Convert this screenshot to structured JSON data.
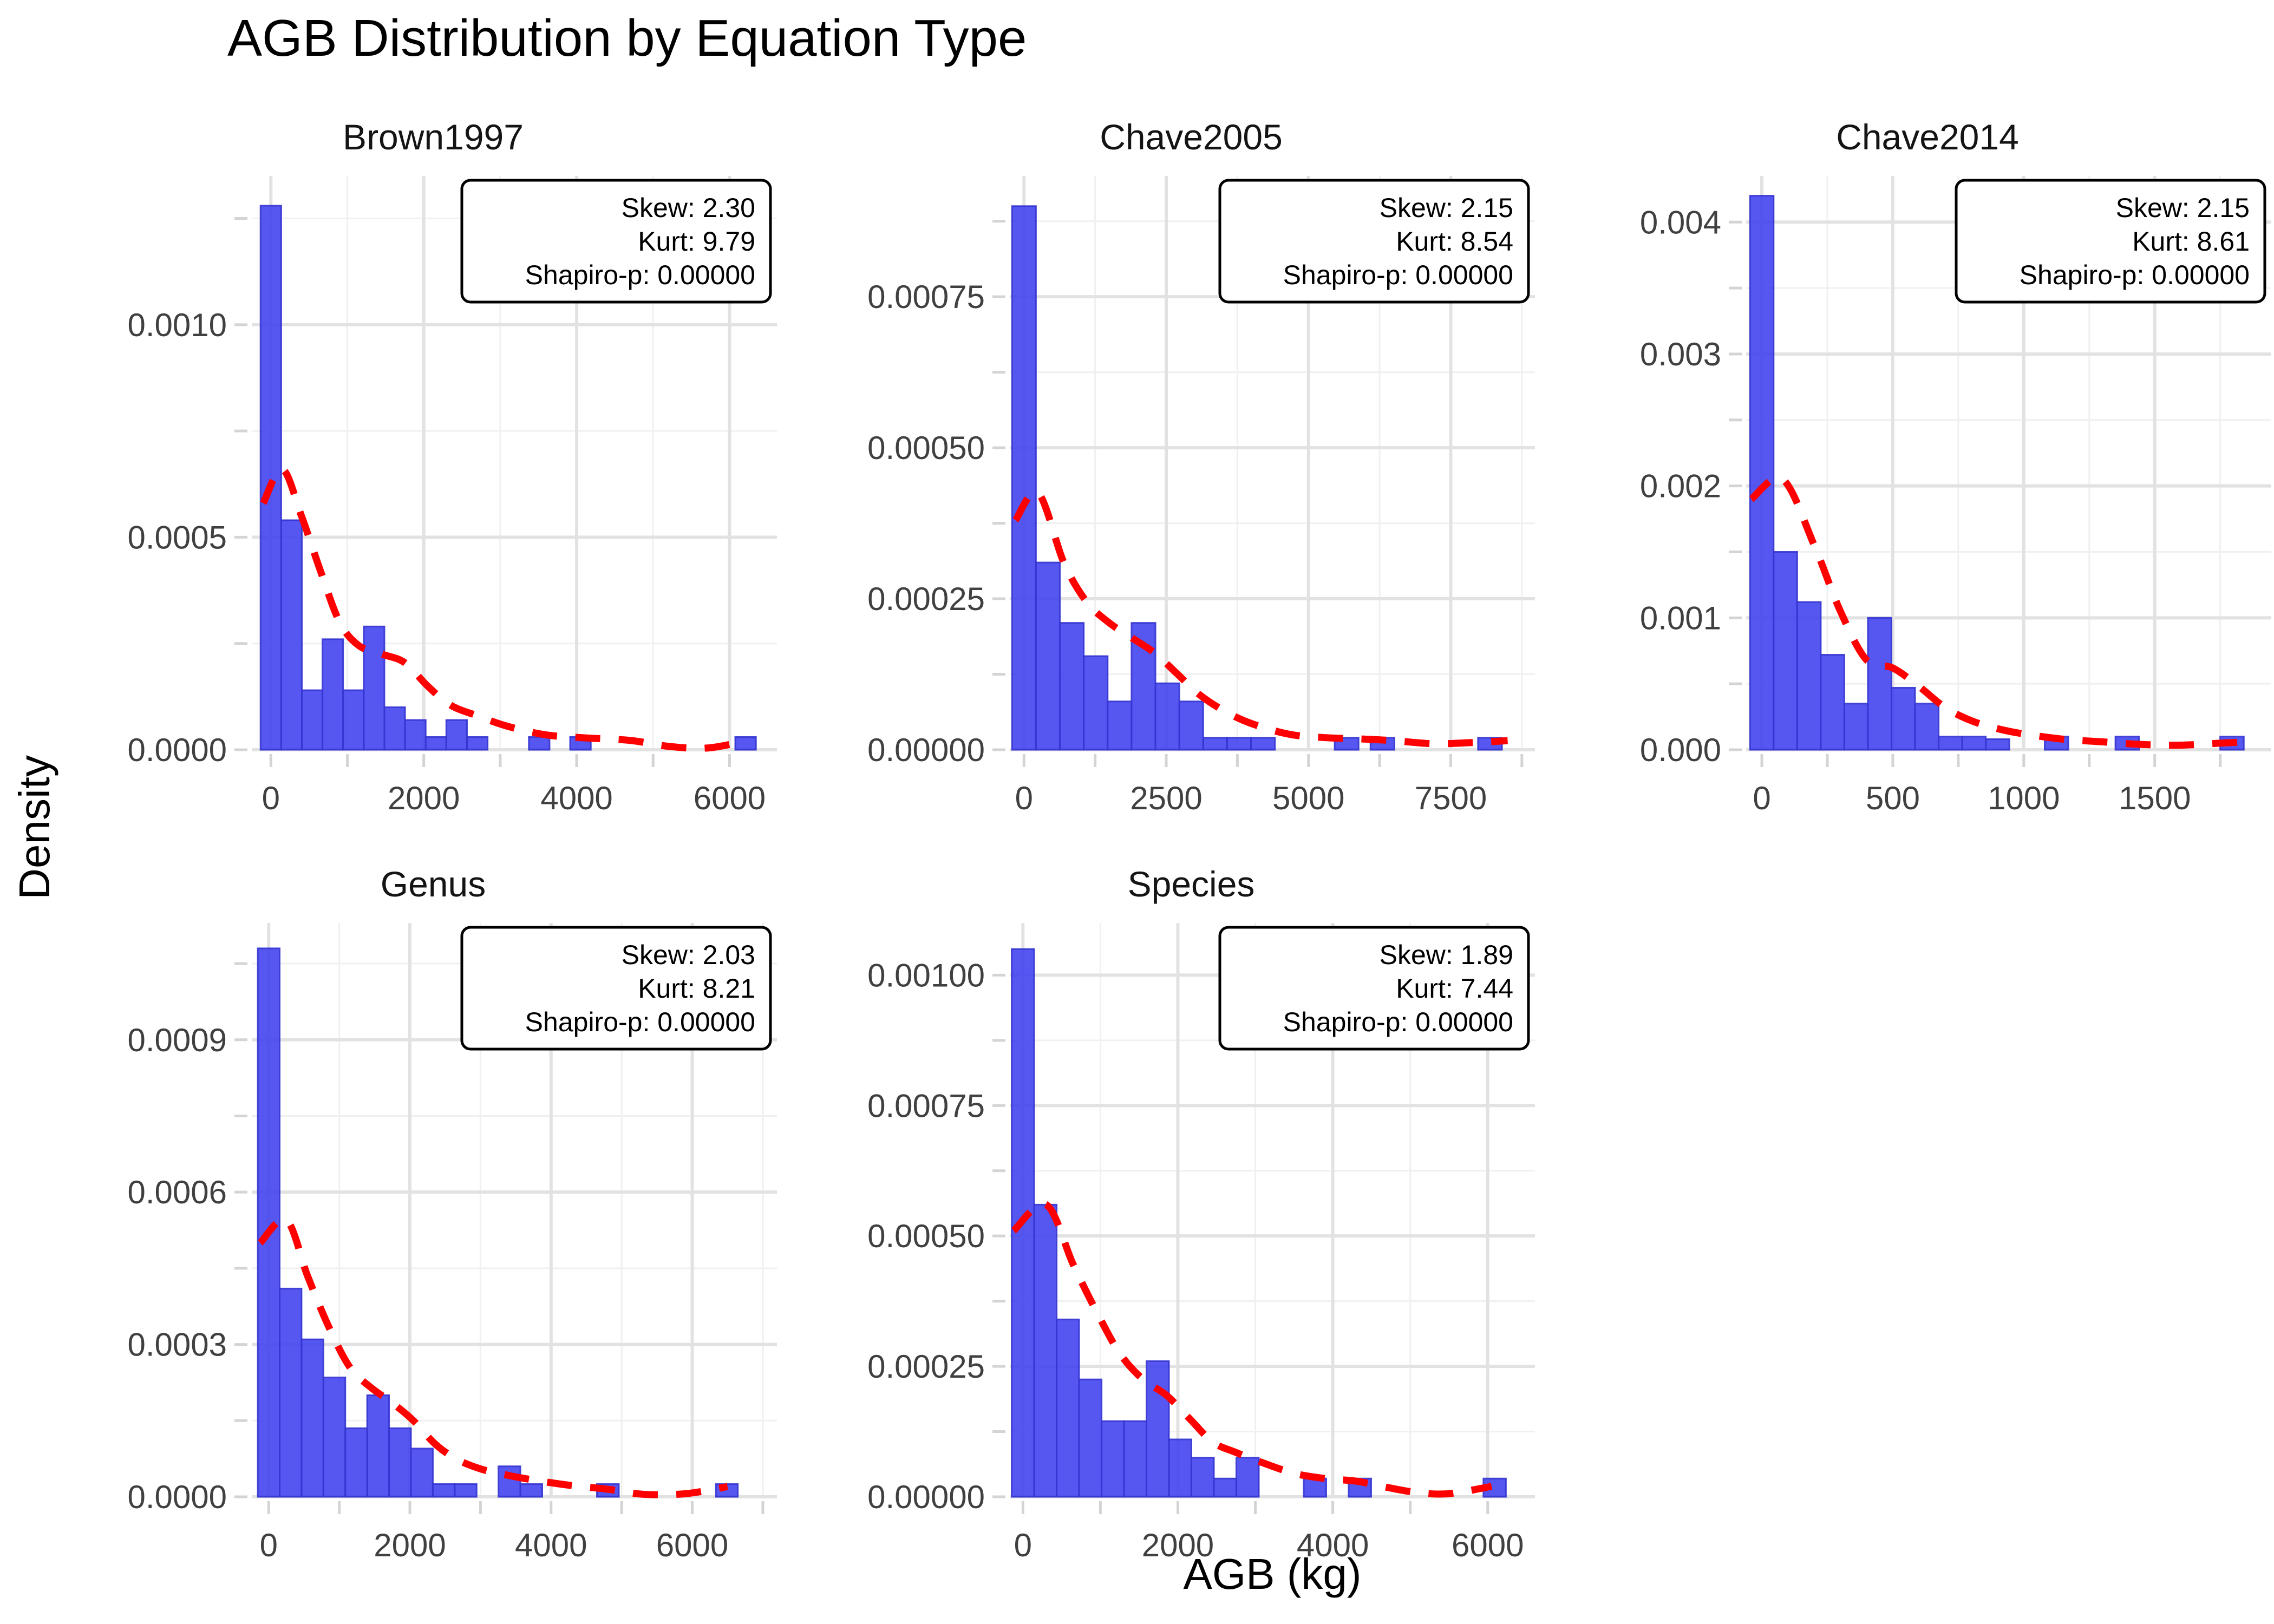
{
  "figure": {
    "title": "AGB Distribution by Equation Type",
    "x_axis_title": "AGB (kg)",
    "y_axis_title": "Density"
  },
  "annotation_prefixes": {
    "skew": "Skew:",
    "kurt": "Kurt:",
    "shapiro": "Shapiro-p:"
  },
  "colors": {
    "bar_fill": "#3F3FEF",
    "bar_edge": "#3535D0",
    "density_curve": "#FF0000",
    "grid_major": "#E2E2E2",
    "grid_minor": "#F0F0F0",
    "tick_mark": "#D4D4D4",
    "axis_text": "#404040",
    "facet_title_text": "#141414",
    "annotation_border": "#000000",
    "annotation_fill": "#FFFFFF",
    "background": "#FFFFFF"
  },
  "chart_data": [
    {
      "type": "bar",
      "facet": "Brown1997",
      "stats": {
        "skew": "2.30",
        "kurt": "9.79",
        "shapiro_p": "0.00000"
      },
      "x_range": [
        -250,
        6620
      ],
      "x_ticks": [
        {
          "value": 0,
          "label": "0"
        },
        {
          "value": 2000,
          "label": "2000"
        },
        {
          "value": 4000,
          "label": "4000"
        },
        {
          "value": 6000,
          "label": "6000"
        }
      ],
      "y_max": 0.00135,
      "y_ticks": [
        {
          "value": 0.0,
          "label": "0.0000"
        },
        {
          "value": 0.0005,
          "label": "0.0005"
        },
        {
          "value": 0.001,
          "label": "0.0010"
        }
      ],
      "bin_width": 270,
      "bars": [
        [
          -135,
          0.00128
        ],
        [
          135,
          0.00054
        ],
        [
          405,
          0.00014
        ],
        [
          675,
          0.00026
        ],
        [
          945,
          0.00014
        ],
        [
          1215,
          0.00029
        ],
        [
          1485,
          0.0001
        ],
        [
          1755,
          7e-05
        ],
        [
          2025,
          3e-05
        ],
        [
          2295,
          7e-05
        ],
        [
          2565,
          3e-05
        ],
        [
          3375,
          3e-05
        ],
        [
          3915,
          3e-05
        ],
        [
          6075,
          3e-05
        ]
      ],
      "density_curve": [
        [
          -100,
          0.00058
        ],
        [
          150,
          0.00066
        ],
        [
          400,
          0.00055
        ],
        [
          650,
          0.00042
        ],
        [
          900,
          0.0003
        ],
        [
          1150,
          0.000245
        ],
        [
          1450,
          0.000225
        ],
        [
          1750,
          0.000205
        ],
        [
          2050,
          0.00015
        ],
        [
          2350,
          0.000105
        ],
        [
          2700,
          8e-05
        ],
        [
          3100,
          5.5e-05
        ],
        [
          3600,
          3.5e-05
        ],
        [
          4100,
          2.8e-05
        ],
        [
          4700,
          2.2e-05
        ],
        [
          5200,
          8e-06
        ],
        [
          5700,
          4e-06
        ],
        [
          6200,
          2e-05
        ]
      ]
    },
    {
      "type": "bar",
      "facet": "Chave2005",
      "stats": {
        "skew": "2.15",
        "kurt": "8.54",
        "shapiro_p": "0.00000"
      },
      "x_range": [
        -250,
        8980
      ],
      "x_ticks": [
        {
          "value": 0,
          "label": "0"
        },
        {
          "value": 2500,
          "label": "2500"
        },
        {
          "value": 5000,
          "label": "5000"
        },
        {
          "value": 7500,
          "label": "7500"
        }
      ],
      "y_max": 0.00095,
      "y_ticks": [
        {
          "value": 0.0,
          "label": "0.00000"
        },
        {
          "value": 0.00025,
          "label": "0.00025"
        },
        {
          "value": 0.0005,
          "label": "0.00050"
        },
        {
          "value": 0.00075,
          "label": "0.00075"
        }
      ],
      "bin_width": 420,
      "bars": [
        [
          -210,
          0.0009
        ],
        [
          210,
          0.00031
        ],
        [
          630,
          0.00021
        ],
        [
          1050,
          0.000155
        ],
        [
          1470,
          8e-05
        ],
        [
          1890,
          0.00021
        ],
        [
          2310,
          0.00011
        ],
        [
          2730,
          8e-05
        ],
        [
          3150,
          2e-05
        ],
        [
          3570,
          2e-05
        ],
        [
          3990,
          2e-05
        ],
        [
          5460,
          2e-05
        ],
        [
          6090,
          2e-05
        ],
        [
          7980,
          2e-05
        ]
      ],
      "density_curve": [
        [
          -150,
          0.00038
        ],
        [
          250,
          0.000425
        ],
        [
          700,
          0.00031
        ],
        [
          1100,
          0.000245
        ],
        [
          1500,
          0.00021
        ],
        [
          1900,
          0.000185
        ],
        [
          2300,
          0.00016
        ],
        [
          2700,
          0.000125
        ],
        [
          3100,
          9e-05
        ],
        [
          3600,
          6e-05
        ],
        [
          4100,
          4e-05
        ],
        [
          4700,
          2.5e-05
        ],
        [
          5300,
          2e-05
        ],
        [
          5900,
          1.8e-05
        ],
        [
          6500,
          1.5e-05
        ],
        [
          7200,
          1e-05
        ],
        [
          7900,
          1.2e-05
        ],
        [
          8500,
          1.5e-05
        ]
      ]
    },
    {
      "type": "bar",
      "facet": "Chave2014",
      "stats": {
        "skew": "2.15",
        "kurt": "8.61",
        "shapiro_p": "0.00000"
      },
      "x_range": [
        -60,
        1945
      ],
      "x_ticks": [
        {
          "value": 0,
          "label": "0"
        },
        {
          "value": 500,
          "label": "500"
        },
        {
          "value": 1000,
          "label": "1000"
        },
        {
          "value": 1500,
          "label": "1500"
        }
      ],
      "y_max": 0.00435,
      "y_ticks": [
        {
          "value": 0.0,
          "label": "0.000"
        },
        {
          "value": 0.001,
          "label": "0.001"
        },
        {
          "value": 0.002,
          "label": "0.002"
        },
        {
          "value": 0.003,
          "label": "0.003"
        },
        {
          "value": 0.004,
          "label": "0.004"
        }
      ],
      "bin_width": 90,
      "bars": [
        [
          -45,
          0.0042
        ],
        [
          45,
          0.0015
        ],
        [
          135,
          0.00112
        ],
        [
          225,
          0.00072
        ],
        [
          315,
          0.00035
        ],
        [
          405,
          0.001
        ],
        [
          495,
          0.00047
        ],
        [
          585,
          0.00035
        ],
        [
          675,
          0.0001
        ],
        [
          765,
          0.0001
        ],
        [
          855,
          8e-05
        ],
        [
          1080,
          0.0001
        ],
        [
          1350,
          0.0001
        ],
        [
          1750,
          0.0001
        ]
      ],
      "density_curve": [
        [
          -40,
          0.0019
        ],
        [
          80,
          0.00205
        ],
        [
          200,
          0.00155
        ],
        [
          300,
          0.00105
        ],
        [
          400,
          0.00068
        ],
        [
          500,
          0.00062
        ],
        [
          600,
          0.00048
        ],
        [
          700,
          0.00032
        ],
        [
          800,
          0.00022
        ],
        [
          900,
          0.00016
        ],
        [
          1000,
          0.00012
        ],
        [
          1150,
          8e-05
        ],
        [
          1300,
          6e-05
        ],
        [
          1450,
          4e-05
        ],
        [
          1600,
          3.5e-05
        ],
        [
          1750,
          5e-05
        ],
        [
          1850,
          6e-05
        ]
      ]
    },
    {
      "type": "bar",
      "facet": "Genus",
      "stats": {
        "skew": "2.03",
        "kurt": "8.21",
        "shapiro_p": "0.00000"
      },
      "x_range": [
        -240,
        7200
      ],
      "x_ticks": [
        {
          "value": 0,
          "label": "0"
        },
        {
          "value": 2000,
          "label": "2000"
        },
        {
          "value": 4000,
          "label": "4000"
        },
        {
          "value": 6000,
          "label": "6000"
        }
      ],
      "y_max": 0.00113,
      "y_ticks": [
        {
          "value": 0.0,
          "label": "0.0000"
        },
        {
          "value": 0.0003,
          "label": "0.0003"
        },
        {
          "value": 0.0006,
          "label": "0.0006"
        },
        {
          "value": 0.0009,
          "label": "0.0009"
        }
      ],
      "bin_width": 310,
      "bars": [
        [
          -155,
          0.00108
        ],
        [
          155,
          0.00041
        ],
        [
          465,
          0.00031
        ],
        [
          775,
          0.000235
        ],
        [
          1085,
          0.000135
        ],
        [
          1395,
          0.0002
        ],
        [
          1705,
          0.000135
        ],
        [
          2015,
          9.5e-05
        ],
        [
          2325,
          2.5e-05
        ],
        [
          2635,
          2.5e-05
        ],
        [
          3255,
          6e-05
        ],
        [
          3565,
          2.5e-05
        ],
        [
          4650,
          2.5e-05
        ],
        [
          6335,
          2.5e-05
        ]
      ],
      "density_curve": [
        [
          -120,
          0.0005
        ],
        [
          250,
          0.000545
        ],
        [
          550,
          0.000435
        ],
        [
          850,
          0.000335
        ],
        [
          1150,
          0.000255
        ],
        [
          1450,
          0.000215
        ],
        [
          1750,
          0.000185
        ],
        [
          2050,
          0.00015
        ],
        [
          2350,
          0.000105
        ],
        [
          2650,
          7.5e-05
        ],
        [
          3000,
          5.5e-05
        ],
        [
          3400,
          4.2e-05
        ],
        [
          3800,
          3.2e-05
        ],
        [
          4300,
          2.2e-05
        ],
        [
          4800,
          1.5e-05
        ],
        [
          5300,
          5e-06
        ],
        [
          5900,
          6e-06
        ],
        [
          6500,
          2e-05
        ]
      ]
    },
    {
      "type": "bar",
      "facet": "Species",
      "stats": {
        "skew": "1.89",
        "kurt": "7.44",
        "shapiro_p": "0.00000"
      },
      "x_range": [
        -170,
        6610
      ],
      "x_ticks": [
        {
          "value": 0,
          "label": "0"
        },
        {
          "value": 2000,
          "label": "2000"
        },
        {
          "value": 4000,
          "label": "4000"
        },
        {
          "value": 6000,
          "label": "6000"
        }
      ],
      "y_max": 0.0011,
      "y_ticks": [
        {
          "value": 0.0,
          "label": "0.00000"
        },
        {
          "value": 0.00025,
          "label": "0.00025"
        },
        {
          "value": 0.0005,
          "label": "0.00050"
        },
        {
          "value": 0.00075,
          "label": "0.00075"
        },
        {
          "value": 0.001,
          "label": "0.00100"
        }
      ],
      "bin_width": 290,
      "bars": [
        [
          -145,
          0.00105
        ],
        [
          145,
          0.00056
        ],
        [
          435,
          0.00034
        ],
        [
          725,
          0.000225
        ],
        [
          1015,
          0.000145
        ],
        [
          1305,
          0.000145
        ],
        [
          1595,
          0.00026
        ],
        [
          1885,
          0.00011
        ],
        [
          2175,
          7.5e-05
        ],
        [
          2465,
          3.5e-05
        ],
        [
          2755,
          7.5e-05
        ],
        [
          3625,
          3.5e-05
        ],
        [
          4205,
          3.5e-05
        ],
        [
          5945,
          3.5e-05
        ]
      ],
      "density_curve": [
        [
          -120,
          0.00051
        ],
        [
          300,
          0.00056
        ],
        [
          650,
          0.000445
        ],
        [
          950,
          0.000355
        ],
        [
          1250,
          0.000275
        ],
        [
          1550,
          0.000225
        ],
        [
          1850,
          0.000195
        ],
        [
          2150,
          0.00015
        ],
        [
          2450,
          0.000105
        ],
        [
          2750,
          8.5e-05
        ],
        [
          3100,
          6.5e-05
        ],
        [
          3500,
          4.5e-05
        ],
        [
          3900,
          3.5e-05
        ],
        [
          4300,
          3e-05
        ],
        [
          4700,
          1.8e-05
        ],
        [
          5100,
          8e-06
        ],
        [
          5500,
          6e-06
        ],
        [
          6050,
          2e-05
        ]
      ]
    }
  ],
  "layout": {
    "grid": true,
    "legend": "none",
    "rows": 2,
    "cols": 3,
    "empty_cells": [
      "row2-col3"
    ]
  }
}
